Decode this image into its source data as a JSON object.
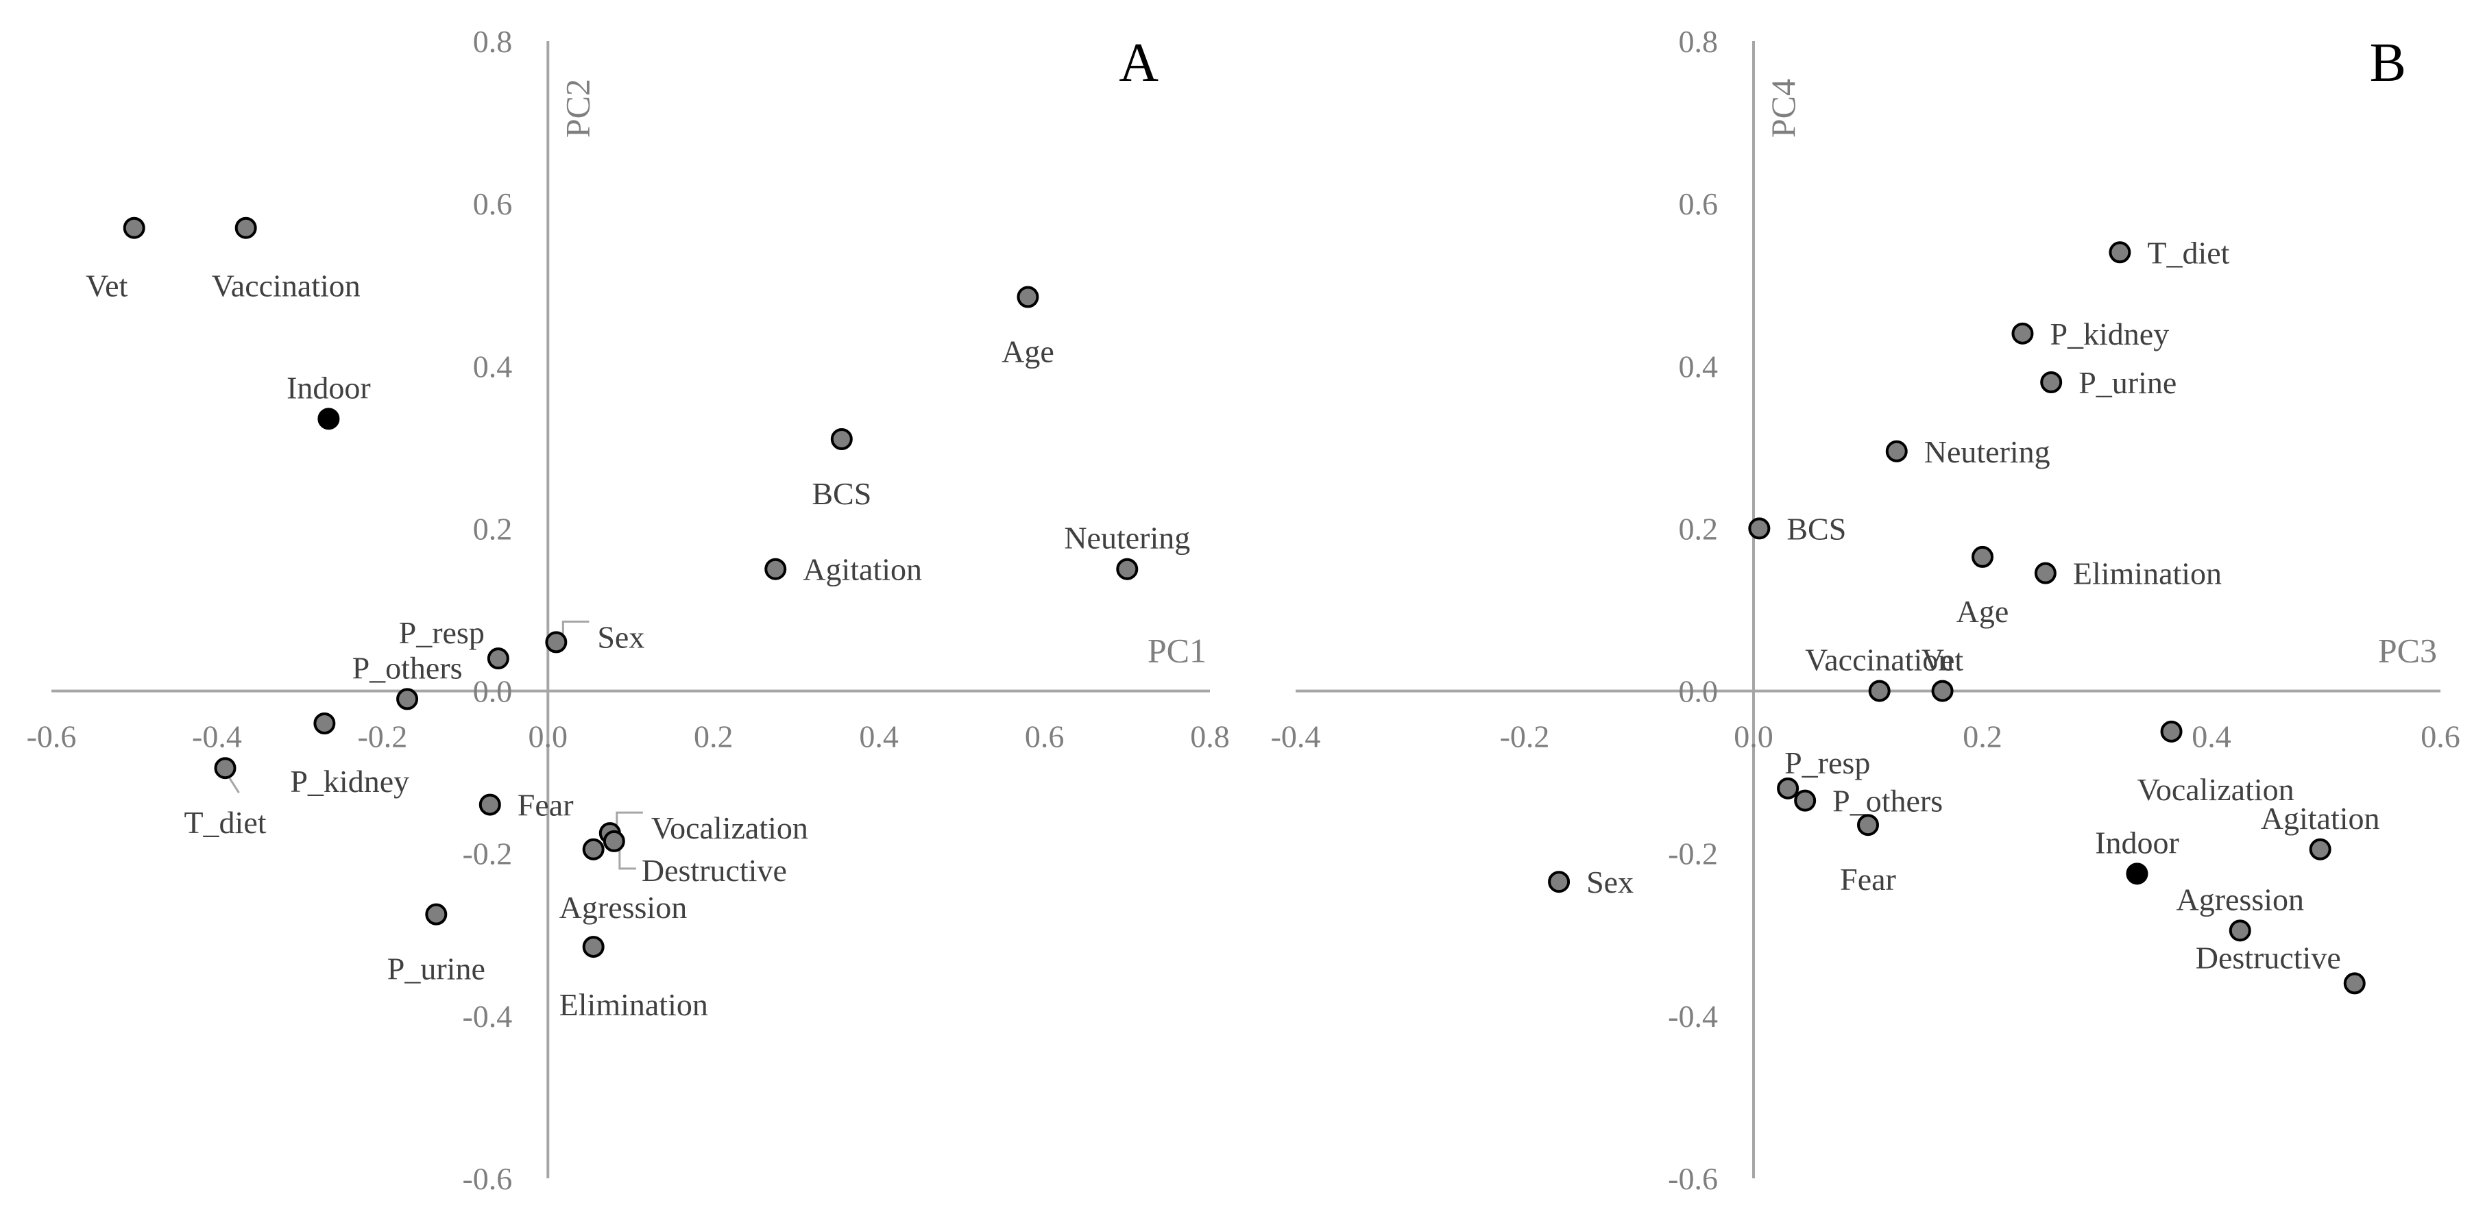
{
  "chart_data": [
    {
      "type": "scatter",
      "panel": "A",
      "xlabel": "PC1",
      "ylabel": "PC2",
      "xlim": [
        -0.6,
        0.8
      ],
      "ylim": [
        -0.6,
        0.8
      ],
      "x_ticks": [
        "-0.6",
        "-0.4",
        "-0.2",
        "0.0",
        "0.2",
        "0.4",
        "0.6",
        "0.8"
      ],
      "y_ticks": [
        "-0.6",
        "-0.4",
        "-0.2",
        "0.0",
        "0.2",
        "0.4",
        "0.6",
        "0.8"
      ],
      "colors": {
        "marker": "#7f7f7f",
        "highlight": "#000000"
      },
      "points": [
        {
          "label": "Vet",
          "x": -0.5,
          "y": 0.57,
          "color": "marker",
          "pos": "below-left"
        },
        {
          "label": "Vaccination",
          "x": -0.365,
          "y": 0.57,
          "color": "marker",
          "pos": "below-right"
        },
        {
          "label": "Indoor",
          "x": -0.265,
          "y": 0.335,
          "color": "highlight",
          "pos": "above"
        },
        {
          "label": "Age",
          "x": 0.58,
          "y": 0.485,
          "color": "marker",
          "pos": "below"
        },
        {
          "label": "BCS",
          "x": 0.355,
          "y": 0.31,
          "color": "marker",
          "pos": "below"
        },
        {
          "label": "Neutering",
          "x": 0.7,
          "y": 0.15,
          "color": "marker",
          "pos": "above"
        },
        {
          "label": "Agitation",
          "x": 0.275,
          "y": 0.15,
          "color": "marker",
          "pos": "right"
        },
        {
          "label": "Sex",
          "x": 0.01,
          "y": 0.06,
          "color": "marker",
          "pos": "leader-right"
        },
        {
          "label": "P_resp",
          "x": -0.06,
          "y": 0.04,
          "color": "marker",
          "pos": "above-left"
        },
        {
          "label": "P_others",
          "x": -0.17,
          "y": -0.01,
          "color": "marker",
          "pos": "above"
        },
        {
          "label": "P_kidney",
          "x": -0.27,
          "y": -0.04,
          "color": "marker",
          "pos": "below-right"
        },
        {
          "label": "T_diet",
          "x": -0.39,
          "y": -0.095,
          "color": "marker",
          "pos": "below"
        },
        {
          "label": "Fear",
          "x": -0.07,
          "y": -0.14,
          "color": "marker",
          "pos": "right"
        },
        {
          "label": "Vocalization",
          "x": 0.075,
          "y": -0.175,
          "color": "marker",
          "pos": "leader-right"
        },
        {
          "label": "Destructive",
          "x": 0.08,
          "y": -0.185,
          "color": "marker",
          "pos": "leader-right-low"
        },
        {
          "label": "Agression",
          "x": 0.055,
          "y": -0.195,
          "color": "marker",
          "pos": "below-right"
        },
        {
          "label": "P_urine",
          "x": -0.135,
          "y": -0.275,
          "color": "marker",
          "pos": "below"
        },
        {
          "label": "Elimination",
          "x": 0.055,
          "y": -0.315,
          "color": "marker",
          "pos": "below-right"
        }
      ]
    },
    {
      "type": "scatter",
      "panel": "B",
      "xlabel": "PC3",
      "ylabel": "PC4",
      "xlim": [
        -0.4,
        0.6
      ],
      "ylim": [
        -0.6,
        0.8
      ],
      "x_ticks": [
        "-0.4",
        "-0.2",
        "0.0",
        "0.2",
        "0.4",
        "0.6"
      ],
      "y_ticks": [
        "-0.6",
        "-0.4",
        "-0.2",
        "0.0",
        "0.2",
        "0.4",
        "0.6",
        "0.8"
      ],
      "colors": {
        "marker": "#7f7f7f",
        "highlight": "#000000"
      },
      "points": [
        {
          "label": "T_diet",
          "x": 0.32,
          "y": 0.54,
          "color": "marker",
          "pos": "right"
        },
        {
          "label": "P_kidney",
          "x": 0.235,
          "y": 0.44,
          "color": "marker",
          "pos": "right"
        },
        {
          "label": "P_urine",
          "x": 0.26,
          "y": 0.38,
          "color": "marker",
          "pos": "right"
        },
        {
          "label": "Neutering",
          "x": 0.125,
          "y": 0.295,
          "color": "marker",
          "pos": "right"
        },
        {
          "label": "BCS",
          "x": 0.005,
          "y": 0.2,
          "color": "marker",
          "pos": "right"
        },
        {
          "label": "Age",
          "x": 0.2,
          "y": 0.165,
          "color": "marker",
          "pos": "below"
        },
        {
          "label": "Elimination",
          "x": 0.255,
          "y": 0.145,
          "color": "marker",
          "pos": "right"
        },
        {
          "label": "Vaccination",
          "x": 0.11,
          "y": 0.0,
          "color": "marker",
          "pos": "above"
        },
        {
          "label": "Vet",
          "x": 0.165,
          "y": 0.0,
          "color": "marker",
          "pos": "above"
        },
        {
          "label": "Vocalization",
          "x": 0.365,
          "y": -0.05,
          "color": "marker",
          "pos": "below-right"
        },
        {
          "label": "P_resp",
          "x": 0.03,
          "y": -0.12,
          "color": "marker",
          "pos": "above-right"
        },
        {
          "label": "P_others",
          "x": 0.045,
          "y": -0.135,
          "color": "marker",
          "pos": "right"
        },
        {
          "label": "Fear",
          "x": 0.1,
          "y": -0.165,
          "color": "marker",
          "pos": "below"
        },
        {
          "label": "Sex",
          "x": -0.17,
          "y": -0.235,
          "color": "marker",
          "pos": "right"
        },
        {
          "label": "Indoor",
          "x": 0.335,
          "y": -0.225,
          "color": "highlight",
          "pos": "above"
        },
        {
          "label": "Agitation",
          "x": 0.495,
          "y": -0.195,
          "color": "marker",
          "pos": "above"
        },
        {
          "label": "Agression",
          "x": 0.425,
          "y": -0.295,
          "color": "marker",
          "pos": "above"
        },
        {
          "label": "Destructive",
          "x": 0.525,
          "y": -0.36,
          "color": "marker",
          "pos": "above-left"
        }
      ]
    }
  ]
}
